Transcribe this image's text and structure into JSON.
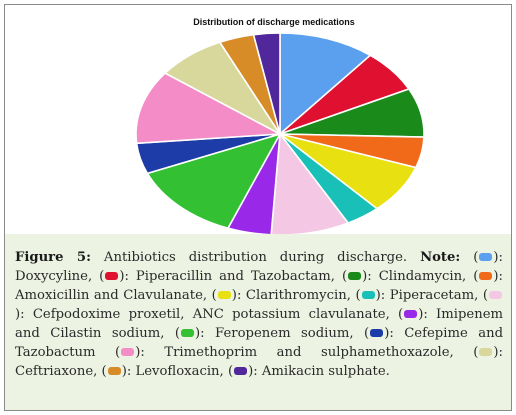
{
  "chart_data": {
    "type": "pie",
    "title": "Distribution of discharge medications",
    "slices": [
      {
        "name": "Doxycyline",
        "value": 11.0,
        "color": "#5aa0ee"
      },
      {
        "name": "Piperacillin and Tazobactam",
        "value": 7.0,
        "color": "#e01030"
      },
      {
        "name": "Clindamycin",
        "value": 8.0,
        "color": "#1a8a1a"
      },
      {
        "name": "Amoxicillin and Clavulanate",
        "value": 5.0,
        "color": "#f06a1a"
      },
      {
        "name": "Clarithromycin",
        "value": 8.0,
        "color": "#e8e010"
      },
      {
        "name": "Piperacetam",
        "value": 4.0,
        "color": "#18c0b8"
      },
      {
        "name": "Cefpodoxime proxetil, ANC potassium clavulanate",
        "value": 9.0,
        "color": "#f4c8e4"
      },
      {
        "name": "Imipenem and Cilastin sodium",
        "value": 5.0,
        "color": "#9a28e8"
      },
      {
        "name": "Feropenem sodium",
        "value": 13.0,
        "color": "#33c033"
      },
      {
        "name": "Cefepime and Tazobactum",
        "value": 5.0,
        "color": "#1e3ca8"
      },
      {
        "name": "Trimethoprim and sulphamethoxazole",
        "value": 12.0,
        "color": "#f48cc8"
      },
      {
        "name": "Ceftriaxone",
        "value": 8.0,
        "color": "#d8d89c"
      },
      {
        "name": "Levofloxacin",
        "value": 4.0,
        "color": "#d88c28"
      },
      {
        "name": "Amikacin sulphate",
        "value": 3.0,
        "color": "#50289c"
      }
    ]
  },
  "caption": {
    "label": "Figure 5:",
    "text": "Antibiotics distribution during discharge.",
    "note_label": "Note:",
    "legend": [
      {
        "text": "Doxycyline,"
      },
      {
        "text": "Piperacillin and Tazobactam,"
      },
      {
        "text": "Clindamycin,"
      },
      {
        "text": "Amoxicillin and Clavulanate,"
      },
      {
        "text": "Clarithromycin,"
      },
      {
        "text": "Piperacetam,"
      },
      {
        "text": "Cefpodoxime proxetil, ANC potassium clavulanate,"
      },
      {
        "text": "Imipenem and Cilastin sodium,"
      },
      {
        "text": "Feropenem sodium,"
      },
      {
        "text": "Cefepime and Tazobactum"
      },
      {
        "text": "Trimethoprim and sulphamethoxazole,"
      },
      {
        "text": "Ceftriaxone,"
      },
      {
        "text": "Levofloxacin,"
      },
      {
        "text": "Amikacin sulphate."
      }
    ]
  }
}
